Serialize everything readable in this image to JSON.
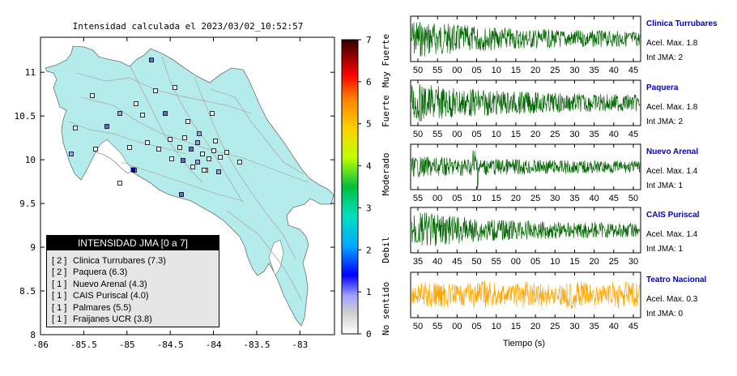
{
  "map": {
    "title": "Intensidad calculada el 2023/03/02_10:52:57",
    "lon_ticks": [
      "-86",
      "-85.5",
      "-85",
      "-84.5",
      "-84",
      "-83.5",
      "-83"
    ],
    "lat_ticks": [
      "8",
      "8.5",
      "9",
      "9.5",
      "10",
      "10.5",
      "11"
    ],
    "legend_title": "INTENSIDAD JMA [0 a 7]",
    "legend": [
      {
        "rank": "[ 2 ]",
        "name": "Clinica Turrubares (7.3)"
      },
      {
        "rank": "[ 2 ]",
        "name": "Paquera (6.3)"
      },
      {
        "rank": "[ 1 ]",
        "name": "Nuevo Arenal (4.3)"
      },
      {
        "rank": "[ 1 ]",
        "name": "CAIS Puriscal (4.0)"
      },
      {
        "rank": "[ 1 ]",
        "name": "Palmares (5.5)"
      },
      {
        "rank": "[ 1 ]",
        "name": "Fraijanes UCR (3.8)"
      }
    ],
    "colors": {
      "land": "#b4ebeb",
      "river": "#b0b0b0"
    }
  },
  "colorbar": {
    "ticks": [
      "0",
      "1",
      "2",
      "3",
      "4",
      "5",
      "6",
      "7"
    ],
    "labels": [
      "No sentido",
      "Debil",
      "Moderado",
      "Fuerte",
      "Muy Fuerte"
    ]
  },
  "chart_data": {
    "type": "line",
    "xlabel": "Tiempo (s)",
    "series": [
      {
        "name": "Clinica Turrubares",
        "accel": "Acel. Max. 1.8",
        "jma": "Int JMA: 2",
        "color": "#006400",
        "ticks": [
          "50",
          "55",
          "00",
          "05",
          "10",
          "15",
          "20",
          "25",
          "30",
          "35",
          "40",
          "45"
        ],
        "env": 0.95,
        "decay": 0.05
      },
      {
        "name": "Paquera",
        "accel": "Acel. Max. 1.8",
        "jma": "Int JMA: 2",
        "color": "#006400",
        "ticks": [
          "50",
          "55",
          "00",
          "05",
          "10",
          "15",
          "20",
          "25",
          "30",
          "35",
          "40",
          "45"
        ],
        "env": 0.95,
        "decay": 0.04
      },
      {
        "name": "Nuevo Arenal",
        "accel": "Acel. Max. 1.4",
        "jma": "Int JMA: 1",
        "color": "#006400",
        "ticks": [
          "55",
          "00",
          "05",
          "10",
          "15",
          "20",
          "25",
          "30",
          "35",
          "40",
          "45",
          "50"
        ],
        "env": 0.5,
        "decay": 0.02
      },
      {
        "name": "CAIS Puriscal",
        "accel": "Acel. Max. 1.4",
        "jma": "Int JMA: 1",
        "color": "#006400",
        "ticks": [
          "35",
          "40",
          "45",
          "50",
          "55",
          "00",
          "05",
          "10",
          "15",
          "20",
          "25",
          "30"
        ],
        "env": 0.95,
        "decay": 0.06
      },
      {
        "name": "Teatro Nacional",
        "accel": "Acel. Max. 0.3",
        "jma": "Int JMA: 0",
        "color": "#ffa500",
        "ticks": [
          "50",
          "55",
          "00",
          "05",
          "10",
          "15",
          "20",
          "25",
          "30",
          "35",
          "40",
          "45"
        ],
        "env": 0.8,
        "decay": 0.0
      }
    ]
  }
}
